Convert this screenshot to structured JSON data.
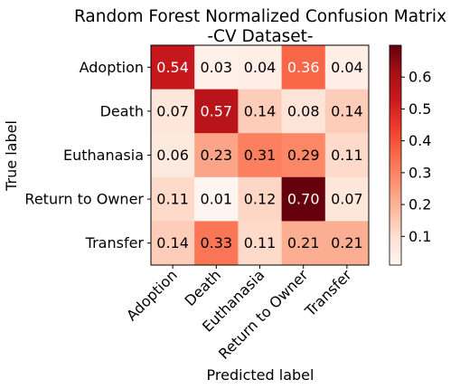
{
  "chart_data": {
    "type": "heatmap",
    "title": "Random Forest Normalized Confusion Matrix",
    "subtitle": "-CV Dataset-",
    "xlabel": "Predicted label",
    "ylabel": "True label",
    "x_categories": [
      "Adoption",
      "Death",
      "Euthanasia",
      "Return to Owner",
      "Transfer"
    ],
    "y_categories": [
      "Adoption",
      "Death",
      "Euthanasia",
      "Return to Owner",
      "Transfer"
    ],
    "values": [
      [
        0.54,
        0.03,
        0.04,
        0.36,
        0.04
      ],
      [
        0.07,
        0.57,
        0.14,
        0.08,
        0.14
      ],
      [
        0.06,
        0.23,
        0.31,
        0.29,
        0.11
      ],
      [
        0.11,
        0.01,
        0.12,
        0.7,
        0.07
      ],
      [
        0.14,
        0.33,
        0.11,
        0.21,
        0.21
      ]
    ],
    "value_labels": [
      [
        "0.54",
        "0.03",
        "0.04",
        "0.36",
        "0.04"
      ],
      [
        "0.07",
        "0.57",
        "0.14",
        "0.08",
        "0.14"
      ],
      [
        "0.06",
        "0.23",
        "0.31",
        "0.29",
        "0.11"
      ],
      [
        "0.11",
        "0.01",
        "0.12",
        "0.70",
        "0.07"
      ],
      [
        "0.14",
        "0.33",
        "0.11",
        "0.21",
        "0.21"
      ]
    ],
    "colorbar": {
      "colormap": "Reds",
      "range": [
        0.01,
        0.7
      ],
      "ticks": [
        0.1,
        0.2,
        0.3,
        0.4,
        0.5,
        0.6
      ],
      "tick_labels": [
        "0.1",
        "0.2",
        "0.3",
        "0.4",
        "0.5",
        "0.6"
      ]
    },
    "grid": false
  }
}
